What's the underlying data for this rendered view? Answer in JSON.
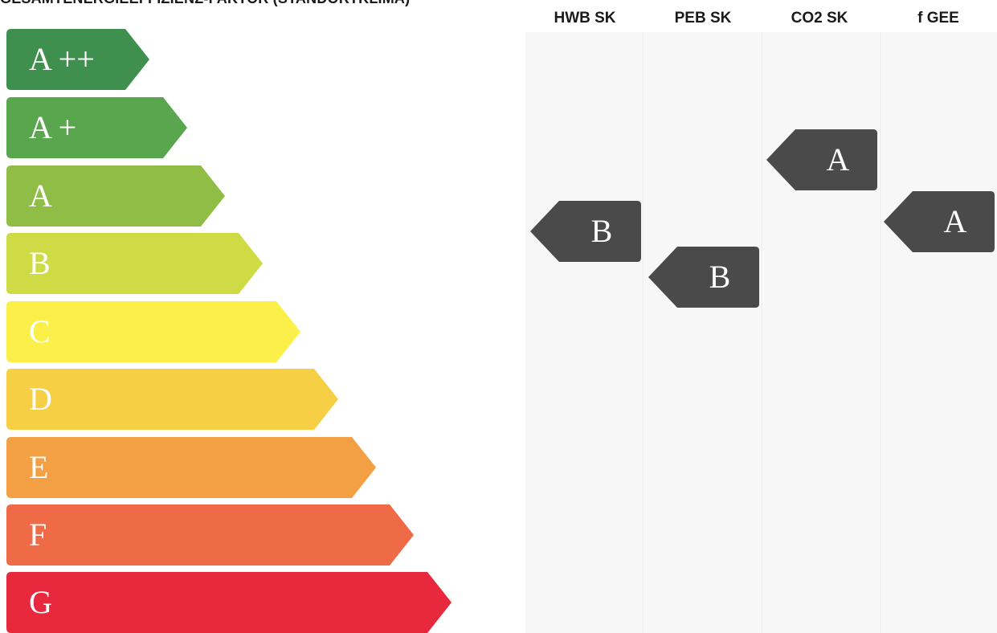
{
  "title": "GESAMTENERGIEEFFIZIENZ-FAKTOR (STANDORTKLIMA)",
  "scale": [
    {
      "label": "A ++",
      "color": "#3f8f4f"
    },
    {
      "label": "A +",
      "color": "#5aa64f"
    },
    {
      "label": "A",
      "color": "#8fbd45"
    },
    {
      "label": "B",
      "color": "#cfdb45"
    },
    {
      "label": "C",
      "color": "#fbf04a"
    },
    {
      "label": "D",
      "color": "#f7cf45"
    },
    {
      "label": "E",
      "color": "#f2a043"
    },
    {
      "label": "F",
      "color": "#ef6b48"
    },
    {
      "label": "G",
      "color": "#e8283c"
    }
  ],
  "columns": [
    {
      "header": "HWB SK",
      "rating": "B"
    },
    {
      "header": "PEB SK",
      "rating": "B"
    },
    {
      "header": "CO2 SK",
      "rating": "A"
    },
    {
      "header": "f GEE",
      "rating": "A"
    }
  ],
  "rating_color": "#4a4a4a"
}
